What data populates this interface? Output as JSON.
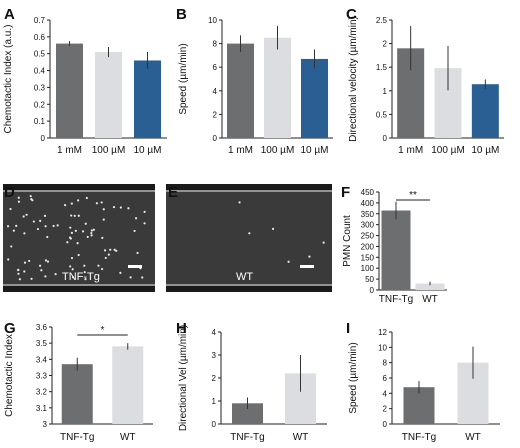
{
  "colors": {
    "dark_gray": "#6d6e70",
    "light_gray": "#dcdde0",
    "blue": "#2a5f94",
    "axis": "#222222",
    "error_bar": "#333333",
    "micrograph_bg": "#3a3a3a"
  },
  "chart_data": [
    {
      "panel": "A",
      "type": "bar",
      "categories": [
        "1 mM",
        "100 µM",
        "10 µM"
      ],
      "values": [
        0.56,
        0.51,
        0.46
      ],
      "errors": [
        0.015,
        0.03,
        0.05
      ],
      "ylabel": "Chemotactic Index (a.u.)",
      "ylim": [
        0,
        0.7
      ],
      "yticks": [
        "0",
        "0.1",
        "0.2",
        "0.3",
        "0.4",
        "0.5",
        "0.6",
        "0.7"
      ],
      "bar_colors": [
        "#6d6e70",
        "#dcdde0",
        "#2a5f94"
      ]
    },
    {
      "panel": "B",
      "type": "bar",
      "categories": [
        "1 mM",
        "100 µM",
        "10 µM"
      ],
      "values": [
        8.0,
        8.5,
        6.7
      ],
      "errors": [
        0.7,
        1.0,
        0.8
      ],
      "ylabel": "Speed (µm/min)",
      "ylim": [
        0,
        10
      ],
      "yticks": [
        "0",
        "2",
        "4",
        "6",
        "8",
        "10"
      ],
      "bar_colors": [
        "#6d6e70",
        "#dcdde0",
        "#2a5f94"
      ]
    },
    {
      "panel": "C",
      "type": "bar",
      "categories": [
        "1 mM",
        "100 µM",
        "10 µM"
      ],
      "values": [
        1.9,
        1.48,
        1.14
      ],
      "errors": [
        0.47,
        0.47,
        0.1
      ],
      "ylabel": "Directional velocity (µm/min)",
      "ylim": [
        0,
        2.5
      ],
      "yticks": [
        "0",
        "0.5",
        "1",
        "1.5",
        "2",
        "2.5"
      ],
      "bar_colors": [
        "#6d6e70",
        "#dcdde0",
        "#2a5f94"
      ]
    },
    {
      "panel": "F",
      "type": "bar",
      "categories": [
        "TNF-Tg",
        "WT"
      ],
      "values": [
        365,
        30
      ],
      "errors": [
        40,
        8
      ],
      "ylabel": "PMN Count",
      "ylim": [
        0,
        450
      ],
      "yticks": [
        "0",
        "50",
        "100",
        "150",
        "200",
        "250",
        "300",
        "350",
        "400",
        "450"
      ],
      "bar_colors": [
        "#6d6e70",
        "#dcdde0"
      ],
      "significance": "**"
    },
    {
      "panel": "G",
      "type": "bar",
      "categories": [
        "TNF-Tg",
        "WT"
      ],
      "values": [
        3.37,
        3.48
      ],
      "errors": [
        0.04,
        0.02
      ],
      "ylabel": "Chemotactic Index",
      "ylim": [
        3.0,
        3.6
      ],
      "yticks": [
        "3",
        "3.1",
        "3.2",
        "3.3",
        "3.4",
        "3.5",
        "3.6"
      ],
      "bar_colors": [
        "#6d6e70",
        "#dcdde0"
      ],
      "significance": "*"
    },
    {
      "panel": "H",
      "type": "bar",
      "categories": [
        "TNF-Tg",
        "WT"
      ],
      "values": [
        0.9,
        2.2
      ],
      "errors": [
        0.25,
        0.8
      ],
      "ylabel": "Directional Vel (µm/min)",
      "ylim": [
        0,
        4
      ],
      "yticks": [
        "0",
        "1",
        "2",
        "3",
        "4"
      ],
      "bar_colors": [
        "#6d6e70",
        "#dcdde0"
      ]
    },
    {
      "panel": "I",
      "type": "bar",
      "categories": [
        "TNF-Tg",
        "WT"
      ],
      "values": [
        4.8,
        8.0
      ],
      "errors": [
        0.8,
        2.1
      ],
      "ylabel": "Speed (µm/min)",
      "ylim": [
        0,
        12
      ],
      "yticks": [
        "0",
        "2",
        "4",
        "6",
        "8",
        "10",
        "12"
      ],
      "bar_colors": [
        "#6d6e70",
        "#dcdde0"
      ]
    }
  ],
  "images": [
    {
      "panel": "D",
      "label": "TNF-Tg",
      "cell_density": "high"
    },
    {
      "panel": "E",
      "label": "WT",
      "cell_density": "low"
    }
  ]
}
